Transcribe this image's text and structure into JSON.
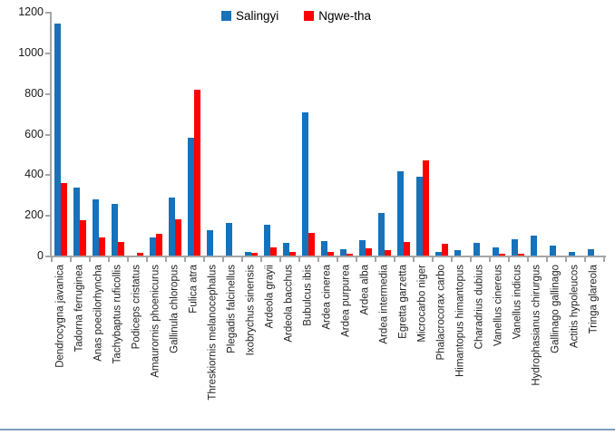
{
  "chart_data": {
    "type": "bar",
    "title": "",
    "xlabel": "",
    "ylabel": "",
    "ylim": [
      0,
      1200
    ],
    "ytick_step": 200,
    "ytick_labels": [
      "0",
      "200",
      "400",
      "600",
      "800",
      "1000",
      "1200"
    ],
    "grid": false,
    "legend_position": "top-center",
    "axis_color": "#a6a6a6",
    "categories": [
      "Dendrocygna javanica",
      "Tadorna ferruginea",
      "Anas poecilorhyncha",
      "Tachybaptus ruficollis",
      "Podiceps cristatus",
      "Amaurornis phoenicurus",
      "Gallinula chloropus",
      "Fulica atra",
      "Threskiornis melanocephalus",
      "Plegadis falcinellus",
      "Ixobrychus sinensis",
      "Ardeola grayii",
      "Ardeola bacchus",
      "Bubulcus ibis",
      "Ardea cinerea",
      "Ardea purpurea",
      "Ardea alba",
      "Ardea intermedia",
      "Egretta garzetta",
      "Microcarbo niger",
      "Phalacrocorax carbo",
      "Himantopus himantopus",
      "Charadrius dubius",
      "Vanellus cinereus",
      "Vanellus indicus",
      "Hydrophasianus chirurgus",
      "Gallinago gallinago",
      "Actitis hypoleucos",
      "Tringa glareola"
    ],
    "series": [
      {
        "name": "Salingyi",
        "color": "#1672ba",
        "values": [
          1140,
          335,
          275,
          255,
          0,
          88,
          285,
          580,
          125,
          160,
          17,
          150,
          63,
          705,
          70,
          32,
          77,
          210,
          415,
          390,
          18,
          28,
          63,
          40,
          80,
          100,
          48,
          17,
          30
        ]
      },
      {
        "name": "Ngwe-tha",
        "color": "#ff0000",
        "values": [
          355,
          175,
          90,
          65,
          12,
          107,
          178,
          815,
          0,
          0,
          14,
          40,
          18,
          113,
          18,
          11,
          36,
          25,
          65,
          470,
          58,
          0,
          0,
          11,
          10,
          0,
          0,
          0,
          0
        ]
      }
    ]
  }
}
